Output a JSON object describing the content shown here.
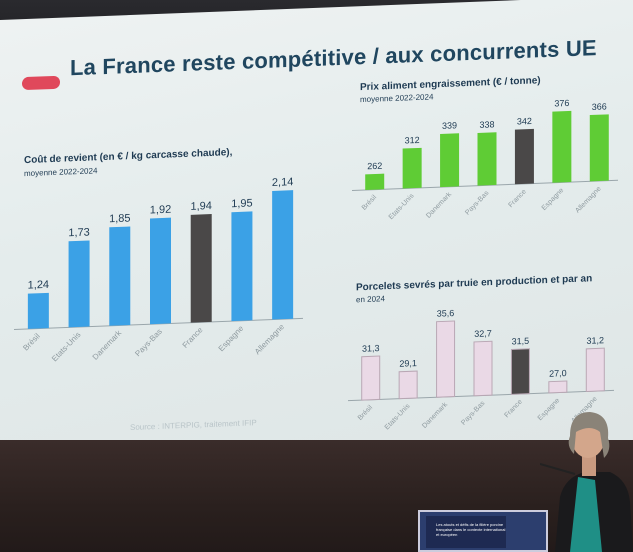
{
  "slide": {
    "title": "La France reste compétitive / aux concurrents UE",
    "source": "Source : INTERPIG, traitement IFIP"
  },
  "colors": {
    "title": "#20465f",
    "accent_pill": "#e0485b",
    "blue_bar": "#3ba1e6",
    "green_bar": "#5fcc35",
    "pink_bar": "#ead9e6",
    "france_bar": "#4a4848"
  },
  "chart_data": [
    {
      "type": "bar",
      "title": "Coût de revient (en € / kg carcasse chaude),",
      "subtitle": "moyenne 2022-2024",
      "categories": [
        "Brésil",
        "Etats-Unis",
        "Danemark",
        "Pays-Bas",
        "France",
        "Espagne",
        "Allemagne"
      ],
      "values": [
        1.24,
        1.73,
        1.85,
        1.92,
        1.94,
        1.95,
        2.14
      ],
      "labels": [
        "1,24",
        "1,73",
        "1,85",
        "1,92",
        "1,94",
        "1,95",
        "2,14"
      ],
      "highlight": "France",
      "ylim": [
        0.9,
        2.25
      ]
    },
    {
      "type": "bar",
      "title": "Prix aliment engraissement (€ / tonne)",
      "subtitle": "moyenne 2022-2024",
      "categories": [
        "Brésil",
        "Etats-Unis",
        "Danemark",
        "Pays-Bas",
        "France",
        "Espagne",
        "Allemagne"
      ],
      "values": [
        262,
        312,
        339,
        338,
        342,
        376,
        366
      ],
      "labels": [
        "262",
        "312",
        "339",
        "338",
        "342",
        "376",
        "366"
      ],
      "highlight": "France",
      "ylim": [
        230,
        390
      ]
    },
    {
      "type": "bar",
      "title": "Porcelets sevrés par truie en production et par an",
      "subtitle": "en 2024",
      "categories": [
        "Brésil",
        "Etats-Unis",
        "Danemark",
        "Pays-Bas",
        "France",
        "Espagne",
        "Allemagne"
      ],
      "values": [
        31.3,
        29.1,
        35.6,
        32.7,
        31.5,
        27.0,
        31.2
      ],
      "labels": [
        "31,3",
        "29,1",
        "35,6",
        "32,7",
        "31,5",
        "27,0",
        "31,2"
      ],
      "highlight": "France",
      "ylim": [
        25.5,
        37
      ]
    }
  ],
  "podium": {
    "screen_text": "Les atouts et défis de la filière porcine française dans le contexte international et européen"
  }
}
